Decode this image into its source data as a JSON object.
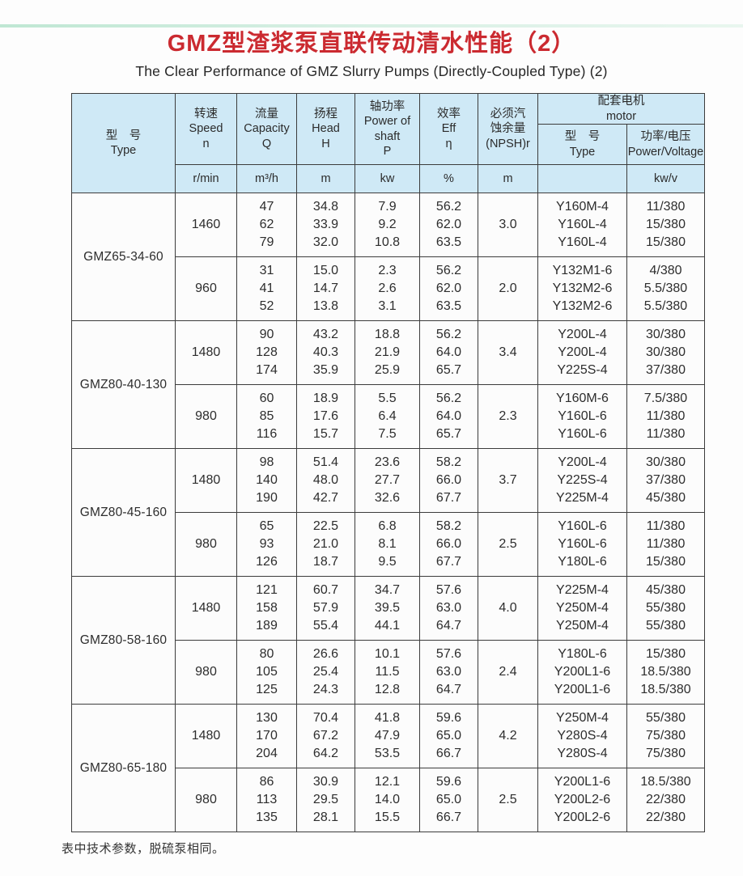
{
  "page": {
    "title_cn": "GMZ型渣浆泵直联传动清水性能（2）",
    "title_en": "The Clear Performance of GMZ Slurry Pumps (Directly-Coupled Type) (2)",
    "footnote": "表中技术参数，脱硫泵相同。"
  },
  "colors": {
    "title_red": "#cb2a30",
    "header_blue": "#cfe9f6",
    "border_dark": "#3c3c3c",
    "top_strip_teal": "#bfe7d3"
  },
  "table": {
    "header": {
      "type": "型　号\nType",
      "speed": "转速\nSpeed\nn",
      "capacity": "流量\nCapacity\nQ",
      "head": "扬程\nHead\nH",
      "shaft_power": "轴功率\nPower of\nshaft\nP",
      "efficiency": "效率\nEff\nη",
      "npsh": "必须汽\n蚀余量\n(NPSH)r",
      "motor_group": "配套电机\nmotor",
      "motor_type": "型　号\nType",
      "motor_power": "功率/电压\nPower/Voltage"
    },
    "units": {
      "speed": "r/min",
      "capacity": "m³/h",
      "head": "m",
      "shaft_power": "kw",
      "efficiency": "%",
      "npsh": "m",
      "motor_type": "",
      "motor_power": "kw/v"
    },
    "groups": [
      {
        "model": "GMZ65-34-60",
        "speeds": [
          {
            "n": "1460",
            "q": [
              "47",
              "62",
              "79"
            ],
            "h": [
              "34.8",
              "33.9",
              "32.0"
            ],
            "p": [
              "7.9",
              "9.2",
              "10.8"
            ],
            "eff": [
              "56.2",
              "62.0",
              "63.5"
            ],
            "npsh": "3.0",
            "motor": [
              "Y160M-4",
              "Y160L-4",
              "Y160L-4"
            ],
            "pv": [
              "11/380",
              "15/380",
              "15/380"
            ]
          },
          {
            "n": "960",
            "q": [
              "31",
              "41",
              "52"
            ],
            "h": [
              "15.0",
              "14.7",
              "13.8"
            ],
            "p": [
              "2.3",
              "2.6",
              "3.1"
            ],
            "eff": [
              "56.2",
              "62.0",
              "63.5"
            ],
            "npsh": "2.0",
            "motor": [
              "Y132M1-6",
              "Y132M2-6",
              "Y132M2-6"
            ],
            "pv": [
              "4/380",
              "5.5/380",
              "5.5/380"
            ]
          }
        ]
      },
      {
        "model": "GMZ80-40-130",
        "speeds": [
          {
            "n": "1480",
            "q": [
              "90",
              "128",
              "174"
            ],
            "h": [
              "43.2",
              "40.3",
              "35.9"
            ],
            "p": [
              "18.8",
              "21.9",
              "25.9"
            ],
            "eff": [
              "56.2",
              "64.0",
              "65.7"
            ],
            "npsh": "3.4",
            "motor": [
              "Y200L-4",
              "Y200L-4",
              "Y225S-4"
            ],
            "pv": [
              "30/380",
              "30/380",
              "37/380"
            ]
          },
          {
            "n": "980",
            "q": [
              "60",
              "85",
              "116"
            ],
            "h": [
              "18.9",
              "17.6",
              "15.7"
            ],
            "p": [
              "5.5",
              "6.4",
              "7.5"
            ],
            "eff": [
              "56.2",
              "64.0",
              "65.7"
            ],
            "npsh": "2.3",
            "motor": [
              "Y160M-6",
              "Y160L-6",
              "Y160L-6"
            ],
            "pv": [
              "7.5/380",
              "11/380",
              "11/380"
            ]
          }
        ]
      },
      {
        "model": "GMZ80-45-160",
        "speeds": [
          {
            "n": "1480",
            "q": [
              "98",
              "140",
              "190"
            ],
            "h": [
              "51.4",
              "48.0",
              "42.7"
            ],
            "p": [
              "23.6",
              "27.7",
              "32.6"
            ],
            "eff": [
              "58.2",
              "66.0",
              "67.7"
            ],
            "npsh": "3.7",
            "motor": [
              "Y200L-4",
              "Y225S-4",
              "Y225M-4"
            ],
            "pv": [
              "30/380",
              "37/380",
              "45/380"
            ]
          },
          {
            "n": "980",
            "q": [
              "65",
              "93",
              "126"
            ],
            "h": [
              "22.5",
              "21.0",
              "18.7"
            ],
            "p": [
              "6.8",
              "8.1",
              "9.5"
            ],
            "eff": [
              "58.2",
              "66.0",
              "67.7"
            ],
            "npsh": "2.5",
            "motor": [
              "Y160L-6",
              "Y160L-6",
              "Y180L-6"
            ],
            "pv": [
              "11/380",
              "11/380",
              "15/380"
            ]
          }
        ]
      },
      {
        "model": "GMZ80-58-160",
        "speeds": [
          {
            "n": "1480",
            "q": [
              "121",
              "158",
              "189"
            ],
            "h": [
              "60.7",
              "57.9",
              "55.4"
            ],
            "p": [
              "34.7",
              "39.5",
              "44.1"
            ],
            "eff": [
              "57.6",
              "63.0",
              "64.7"
            ],
            "npsh": "4.0",
            "motor": [
              "Y225M-4",
              "Y250M-4",
              "Y250M-4"
            ],
            "pv": [
              "45/380",
              "55/380",
              "55/380"
            ]
          },
          {
            "n": "980",
            "q": [
              "80",
              "105",
              "125"
            ],
            "h": [
              "26.6",
              "25.4",
              "24.3"
            ],
            "p": [
              "10.1",
              "11.5",
              "12.8"
            ],
            "eff": [
              "57.6",
              "63.0",
              "64.7"
            ],
            "npsh": "2.4",
            "motor": [
              "Y180L-6",
              "Y200L1-6",
              "Y200L1-6"
            ],
            "pv": [
              "15/380",
              "18.5/380",
              "18.5/380"
            ]
          }
        ]
      },
      {
        "model": "GMZ80-65-180",
        "speeds": [
          {
            "n": "1480",
            "q": [
              "130",
              "170",
              "204"
            ],
            "h": [
              "70.4",
              "67.2",
              "64.2"
            ],
            "p": [
              "41.8",
              "47.9",
              "53.5"
            ],
            "eff": [
              "59.6",
              "65.0",
              "66.7"
            ],
            "npsh": "4.2",
            "motor": [
              "Y250M-4",
              "Y280S-4",
              "Y280S-4"
            ],
            "pv": [
              "55/380",
              "75/380",
              "75/380"
            ]
          },
          {
            "n": "980",
            "q": [
              "86",
              "113",
              "135"
            ],
            "h": [
              "30.9",
              "29.5",
              "28.1"
            ],
            "p": [
              "12.1",
              "14.0",
              "15.5"
            ],
            "eff": [
              "59.6",
              "65.0",
              "66.7"
            ],
            "npsh": "2.5",
            "motor": [
              "Y200L1-6",
              "Y200L2-6",
              "Y200L2-6"
            ],
            "pv": [
              "18.5/380",
              "22/380",
              "22/380"
            ]
          }
        ]
      }
    ]
  }
}
